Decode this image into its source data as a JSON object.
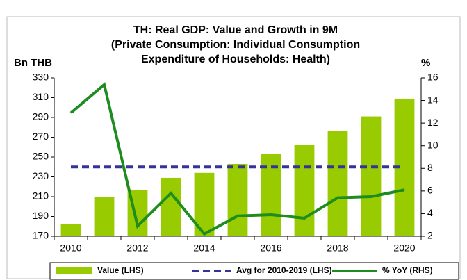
{
  "chart_data": {
    "type": "bar_line",
    "title": [
      "TH: Real GDP: Value and Growth in 9M",
      "(Private Consumption: Individual Consumption",
      "Expenditure of Households: Health)"
    ],
    "y_label": "Bn THB",
    "y2_label": "%",
    "categories": [
      "2010",
      null,
      "2012",
      null,
      "2014",
      null,
      "2016",
      null,
      "2018",
      null,
      "2020"
    ],
    "series": [
      {
        "name": "Value (LHS)",
        "type": "bar",
        "color": "#99cc00",
        "values": [
          182,
          210,
          217,
          229,
          234,
          243,
          253,
          262,
          276,
          291,
          309
        ]
      },
      {
        "name": "% YoY (RHS)",
        "type": "line",
        "axis": "y2",
        "color": "#1e8c1e",
        "values": [
          12.9,
          15.4,
          2.9,
          5.8,
          2.2,
          3.8,
          3.9,
          3.6,
          5.4,
          5.5,
          6.1
        ]
      }
    ],
    "average": {
      "name": "Avg for 2010-2019 (LHS)",
      "value": 240,
      "color": "#333399"
    },
    "ylim": [
      170,
      330
    ],
    "yticks": [
      170,
      190,
      210,
      230,
      250,
      270,
      290,
      310,
      330
    ],
    "y2lim": [
      2,
      16
    ],
    "y2ticks": [
      2,
      4,
      6,
      8,
      10,
      12,
      14,
      16
    ]
  }
}
